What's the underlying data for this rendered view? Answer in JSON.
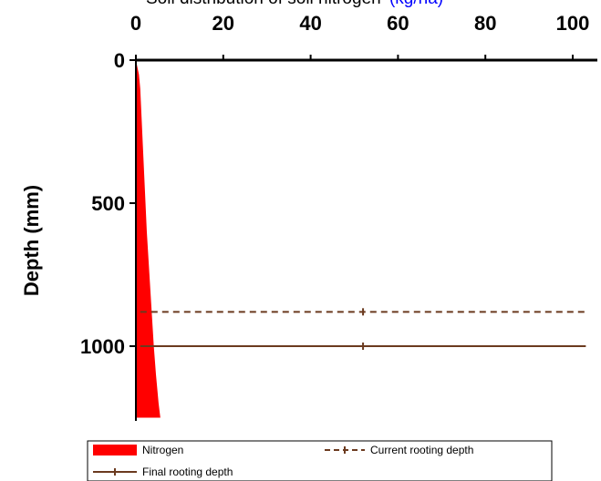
{
  "chart_data": {
    "type": "area",
    "title": "Soil distribution of soil nitrogen",
    "title_unit": "(kg/ha)",
    "colors": {
      "nitrogen": "#ff0000",
      "current_rooting_depth": "#6b3a1f",
      "final_rooting_depth": "#6b3a1f",
      "title_text": "#000000",
      "title_unit": "#0000ff"
    },
    "x_axis": {
      "position": "top",
      "range": [
        0,
        100
      ],
      "ticks": [
        0,
        20,
        40,
        60,
        80,
        100
      ],
      "tick_labels": [
        "0",
        "20",
        "40",
        "60",
        "80",
        "100"
      ]
    },
    "y_axis": {
      "label": "Depth (mm)",
      "inverted": true,
      "range": [
        0,
        1250
      ],
      "ticks": [
        0,
        500,
        1000
      ],
      "tick_labels": [
        "0",
        "500",
        "1000"
      ]
    },
    "series": [
      {
        "name": "Nitrogen",
        "style": "filled-area",
        "depth": [
          0,
          50,
          100,
          200,
          300,
          400,
          500,
          600,
          700,
          800,
          900,
          1000,
          1100,
          1200,
          1250
        ],
        "value": [
          0.0,
          0.7,
          1.0,
          1.3,
          1.6,
          1.9,
          2.2,
          2.5,
          2.9,
          3.3,
          3.7,
          4.1,
          4.6,
          5.2,
          5.6
        ]
      },
      {
        "name": "Current rooting depth",
        "style": "dashed-line",
        "depth": 880,
        "x_range": [
          1,
          103
        ],
        "marker_x": 52
      },
      {
        "name": "Final rooting depth",
        "style": "solid-line",
        "depth": 1000,
        "x_range": [
          1,
          103
        ],
        "marker_x": 52
      }
    ],
    "legend": {
      "placement": "bottom",
      "entries": [
        "Nitrogen",
        "Current rooting depth",
        "Final rooting depth"
      ]
    },
    "grid": false
  }
}
